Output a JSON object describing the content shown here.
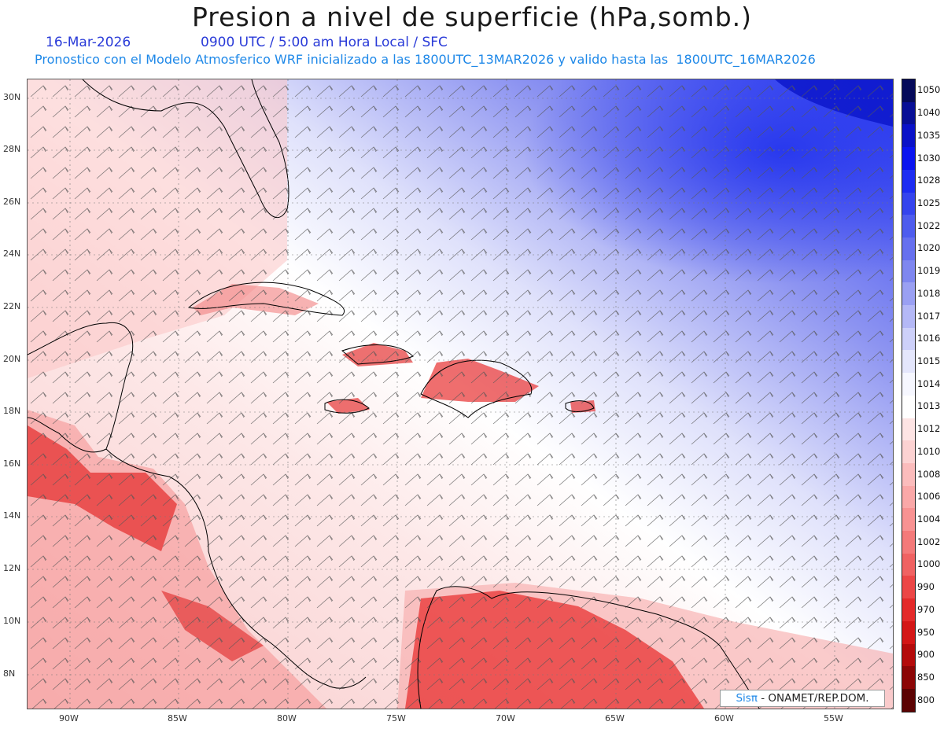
{
  "header": {
    "title": "Presion a nivel de superficie (hPa,somb.)",
    "date": "16-Mar-2026",
    "valid_time": "0900 UTC / 5:00 am Hora Local / SFC",
    "model_info": "Pronostico con el Modelo Atmosferico WRF inicializado a las 1800UTC_13MAR2026 y valido hasta las  1800UTC_16MAR2026"
  },
  "map": {
    "lat_labels": [
      "30N",
      "28N",
      "26N",
      "24N",
      "22N",
      "20N",
      "18N",
      "16N",
      "14N",
      "12N",
      "10N",
      "8N"
    ],
    "lon_labels": [
      "90W",
      "85W",
      "80W",
      "75W",
      "70W",
      "65W",
      "60W",
      "55W"
    ]
  },
  "colorbar": {
    "levels": [
      "1050",
      "1040",
      "1035",
      "1030",
      "1028",
      "1025",
      "1022",
      "1020",
      "1019",
      "1018",
      "1017",
      "1016",
      "1015",
      "1014",
      "1013",
      "1012",
      "1010",
      "1008",
      "1006",
      "1004",
      "1002",
      "1000",
      "990",
      "970",
      "950",
      "900",
      "850",
      "800"
    ],
    "colors": [
      "#050a5a",
      "#080f96",
      "#0a12c8",
      "#0a14f0",
      "#1d2cf2",
      "#3544ee",
      "#4e5cee",
      "#6670ef",
      "#7f87f0",
      "#9aa0f3",
      "#b4b8f6",
      "#cdd0f9",
      "#e4e6fc",
      "#f6f7ff",
      "#ffffff",
      "#fde4e4",
      "#fcd2d2",
      "#fbbcbc",
      "#faa8a8",
      "#f89292",
      "#f47a7a",
      "#f06262",
      "#ec4646",
      "#e42a2a",
      "#d41616",
      "#b40b0b",
      "#8c0606",
      "#5c0303"
    ]
  },
  "logo": {
    "brand": "Sis",
    "pi": "π",
    "org": " - ONAMET/REP.DOM."
  }
}
